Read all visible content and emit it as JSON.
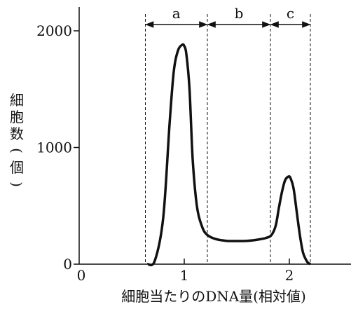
{
  "chart_data": {
    "type": "line",
    "title": "",
    "xlabel": "細胞当たりのDNA量(相対値)",
    "ylabel": "細胞数(個)",
    "ylabel_chars": [
      "細",
      "胞",
      "数",
      "(",
      "個",
      ")"
    ],
    "xlim": [
      0,
      2.65
    ],
    "ylim": [
      0,
      2200
    ],
    "x_ticks": [
      0,
      1,
      2
    ],
    "x_tick_labels": [
      "0",
      "1",
      "2"
    ],
    "y_ticks": [
      0,
      1000,
      2000
    ],
    "y_tick_labels": [
      "0",
      "1000",
      "2000"
    ],
    "grid": false,
    "regions": [
      {
        "label": "a",
        "x_start": 0.63,
        "x_end": 1.22
      },
      {
        "label": "b",
        "x_start": 1.22,
        "x_end": 1.82
      },
      {
        "label": "c",
        "x_start": 1.82,
        "x_end": 2.2
      }
    ],
    "series": [
      {
        "x": [
          0.65,
          0.72,
          0.8,
          0.86,
          0.9,
          0.94,
          0.98,
          1.0,
          1.02,
          1.05,
          1.08,
          1.12,
          1.17,
          1.22,
          1.3,
          1.4,
          1.5,
          1.6,
          1.7,
          1.78,
          1.83,
          1.87,
          1.9,
          1.93,
          1.96,
          1.99,
          2.01,
          2.04,
          2.07,
          2.1,
          2.13,
          2.17,
          2.2
        ],
        "y": [
          0,
          30,
          400,
          1200,
          1650,
          1830,
          1880,
          1870,
          1800,
          1500,
          900,
          500,
          320,
          250,
          215,
          200,
          198,
          200,
          210,
          225,
          250,
          330,
          480,
          620,
          720,
          750,
          740,
          650,
          450,
          250,
          100,
          20,
          0
        ]
      }
    ]
  }
}
